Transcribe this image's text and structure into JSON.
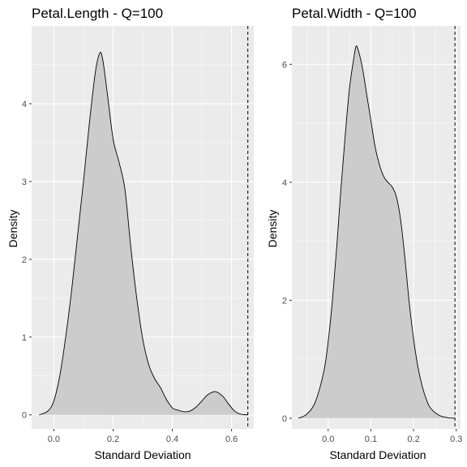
{
  "figure": {
    "background": "#ffffff",
    "panel_background": "#ebebeb",
    "grid_major_color": "#ffffff",
    "fill_color": "#cccccc",
    "line_color": "#000000"
  },
  "chart_data": [
    {
      "type": "area",
      "subtype": "density",
      "title": "Petal.Length - Q=100",
      "xlabel": "Standard Deviation",
      "ylabel": "Density",
      "xlim": [
        -0.075,
        0.675
      ],
      "ylim": [
        -0.18,
        5.0
      ],
      "xticks": [
        0.0,
        0.2,
        0.4,
        0.6
      ],
      "xtick_labels": [
        "0.0",
        "0.2",
        "0.4",
        "0.6"
      ],
      "yticks": [
        0,
        1,
        2,
        3,
        4
      ],
      "ytick_labels": [
        "0",
        "1",
        "2",
        "3",
        "4"
      ],
      "reference_line": {
        "x": 0.655,
        "style": "dashed"
      },
      "grid": true,
      "points": [
        [
          -0.05,
          0.0
        ],
        [
          -0.02,
          0.05
        ],
        [
          0.0,
          0.18
        ],
        [
          0.02,
          0.5
        ],
        [
          0.04,
          1.0
        ],
        [
          0.06,
          1.6
        ],
        [
          0.08,
          2.3
        ],
        [
          0.1,
          3.0
        ],
        [
          0.12,
          3.75
        ],
        [
          0.14,
          4.4
        ],
        [
          0.155,
          4.65
        ],
        [
          0.165,
          4.57
        ],
        [
          0.18,
          4.15
        ],
        [
          0.2,
          3.55
        ],
        [
          0.22,
          3.25
        ],
        [
          0.24,
          2.9
        ],
        [
          0.26,
          2.15
        ],
        [
          0.28,
          1.5
        ],
        [
          0.3,
          0.98
        ],
        [
          0.32,
          0.65
        ],
        [
          0.34,
          0.47
        ],
        [
          0.36,
          0.35
        ],
        [
          0.38,
          0.2
        ],
        [
          0.4,
          0.09
        ],
        [
          0.42,
          0.06
        ],
        [
          0.44,
          0.04
        ],
        [
          0.46,
          0.05
        ],
        [
          0.48,
          0.1
        ],
        [
          0.5,
          0.18
        ],
        [
          0.52,
          0.26
        ],
        [
          0.545,
          0.3
        ],
        [
          0.57,
          0.24
        ],
        [
          0.59,
          0.14
        ],
        [
          0.61,
          0.05
        ],
        [
          0.63,
          0.01
        ],
        [
          0.655,
          0.0
        ]
      ]
    },
    {
      "type": "area",
      "subtype": "density",
      "title": "Petal.Width - Q=100",
      "xlabel": "Standard Deviation",
      "ylabel": "Density",
      "xlim": [
        -0.085,
        0.31
      ],
      "ylim": [
        -0.18,
        6.65
      ],
      "xticks": [
        0.0,
        0.1,
        0.2,
        0.3
      ],
      "xtick_labels": [
        "0.0",
        "0.1",
        "0.2",
        "0.3"
      ],
      "yticks": [
        0,
        2,
        4,
        6
      ],
      "ytick_labels": [
        "0",
        "2",
        "4",
        "6"
      ],
      "reference_line": {
        "x": 0.297,
        "style": "dashed"
      },
      "grid": true,
      "points": [
        [
          -0.07,
          0.0
        ],
        [
          -0.05,
          0.07
        ],
        [
          -0.03,
          0.28
        ],
        [
          -0.01,
          0.8
        ],
        [
          0.0,
          1.3
        ],
        [
          0.01,
          2.0
        ],
        [
          0.02,
          2.9
        ],
        [
          0.03,
          3.9
        ],
        [
          0.04,
          4.8
        ],
        [
          0.05,
          5.6
        ],
        [
          0.06,
          6.1
        ],
        [
          0.065,
          6.3
        ],
        [
          0.07,
          6.25
        ],
        [
          0.08,
          5.95
        ],
        [
          0.09,
          5.5
        ],
        [
          0.1,
          5.05
        ],
        [
          0.11,
          4.6
        ],
        [
          0.12,
          4.3
        ],
        [
          0.13,
          4.1
        ],
        [
          0.14,
          4.0
        ],
        [
          0.15,
          3.92
        ],
        [
          0.16,
          3.75
        ],
        [
          0.17,
          3.35
        ],
        [
          0.18,
          2.7
        ],
        [
          0.19,
          1.95
        ],
        [
          0.2,
          1.35
        ],
        [
          0.21,
          0.88
        ],
        [
          0.22,
          0.55
        ],
        [
          0.23,
          0.32
        ],
        [
          0.24,
          0.17
        ],
        [
          0.26,
          0.05
        ],
        [
          0.28,
          0.01
        ],
        [
          0.297,
          0.0
        ]
      ]
    }
  ]
}
